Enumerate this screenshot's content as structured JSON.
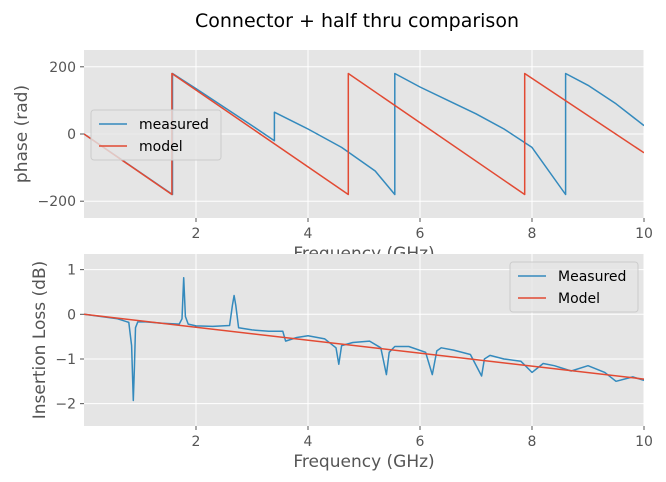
{
  "figure": {
    "title": "Connector + half thru comparison"
  },
  "chart_data": [
    {
      "type": "line",
      "xlabel": "Frequency (GHz)",
      "ylabel": "phase (rad)",
      "xlim": [
        0,
        10
      ],
      "ylim": [
        -250,
        250
      ],
      "xticks": [
        2,
        4,
        6,
        8,
        10
      ],
      "yticks": [
        -200,
        0,
        200
      ],
      "grid": true,
      "legend_position": "center-left",
      "series": [
        {
          "name": "measured",
          "color": "#348ABD",
          "x": [
            0,
            1.58,
            1.58,
            2.0,
            2.5,
            3.0,
            3.4,
            3.4,
            4.0,
            4.6,
            5.2,
            5.55,
            5.55,
            6.0,
            6.5,
            7.0,
            7.5,
            8.0,
            8.6,
            8.6,
            9.0,
            9.5,
            10.0
          ],
          "y": [
            0,
            -180,
            180,
            135,
            80,
            25,
            -20,
            65,
            15,
            -40,
            -110,
            -180,
            180,
            140,
            100,
            60,
            15,
            -40,
            -180,
            180,
            145,
            90,
            25
          ]
        },
        {
          "name": "model",
          "color": "#E24A33",
          "x": [
            0,
            1.57,
            1.57,
            4.72,
            4.72,
            7.87,
            7.87,
            10.0
          ],
          "y": [
            0,
            -180,
            180,
            -180,
            180,
            -180,
            180,
            -56
          ]
        }
      ]
    },
    {
      "type": "line",
      "xlabel": "Frequency (GHz)",
      "ylabel": "Insertion Loss (dB)",
      "xlim": [
        0,
        10
      ],
      "ylim": [
        -2.5,
        1.35
      ],
      "xticks": [
        2,
        4,
        6,
        8,
        10
      ],
      "yticks": [
        -2,
        -1,
        0,
        1
      ],
      "grid": true,
      "legend_position": "top-right",
      "series": [
        {
          "name": "Measured",
          "color": "#348ABD",
          "x": [
            0,
            0.3,
            0.6,
            0.8,
            0.85,
            0.88,
            0.9,
            0.92,
            0.96,
            1.1,
            1.4,
            1.7,
            1.75,
            1.78,
            1.81,
            1.86,
            2.0,
            2.3,
            2.6,
            2.65,
            2.68,
            2.71,
            2.76,
            3.0,
            3.3,
            3.55,
            3.6,
            3.8,
            4.0,
            4.3,
            4.5,
            4.55,
            4.6,
            4.8,
            5.1,
            5.3,
            5.4,
            5.45,
            5.55,
            5.8,
            6.1,
            6.22,
            6.3,
            6.38,
            6.6,
            6.9,
            7.1,
            7.15,
            7.25,
            7.5,
            7.8,
            8.0,
            8.2,
            8.4,
            8.7,
            9.0,
            9.3,
            9.5,
            9.8,
            10.0
          ],
          "y": [
            0,
            -0.05,
            -0.1,
            -0.18,
            -0.7,
            -1.93,
            -1.2,
            -0.3,
            -0.17,
            -0.17,
            -0.2,
            -0.22,
            -0.1,
            0.82,
            -0.05,
            -0.22,
            -0.26,
            -0.27,
            -0.25,
            0.2,
            0.42,
            0.2,
            -0.3,
            -0.35,
            -0.38,
            -0.38,
            -0.6,
            -0.52,
            -0.48,
            -0.55,
            -0.75,
            -1.12,
            -0.7,
            -0.63,
            -0.6,
            -0.75,
            -1.35,
            -0.85,
            -0.72,
            -0.72,
            -0.85,
            -1.35,
            -0.82,
            -0.75,
            -0.8,
            -0.9,
            -1.38,
            -1.0,
            -0.92,
            -1.0,
            -1.05,
            -1.3,
            -1.1,
            -1.15,
            -1.27,
            -1.15,
            -1.3,
            -1.5,
            -1.4,
            -1.48
          ]
        },
        {
          "name": "Model",
          "color": "#E24A33",
          "x": [
            0,
            10
          ],
          "y": [
            0,
            -1.45
          ]
        }
      ]
    }
  ]
}
